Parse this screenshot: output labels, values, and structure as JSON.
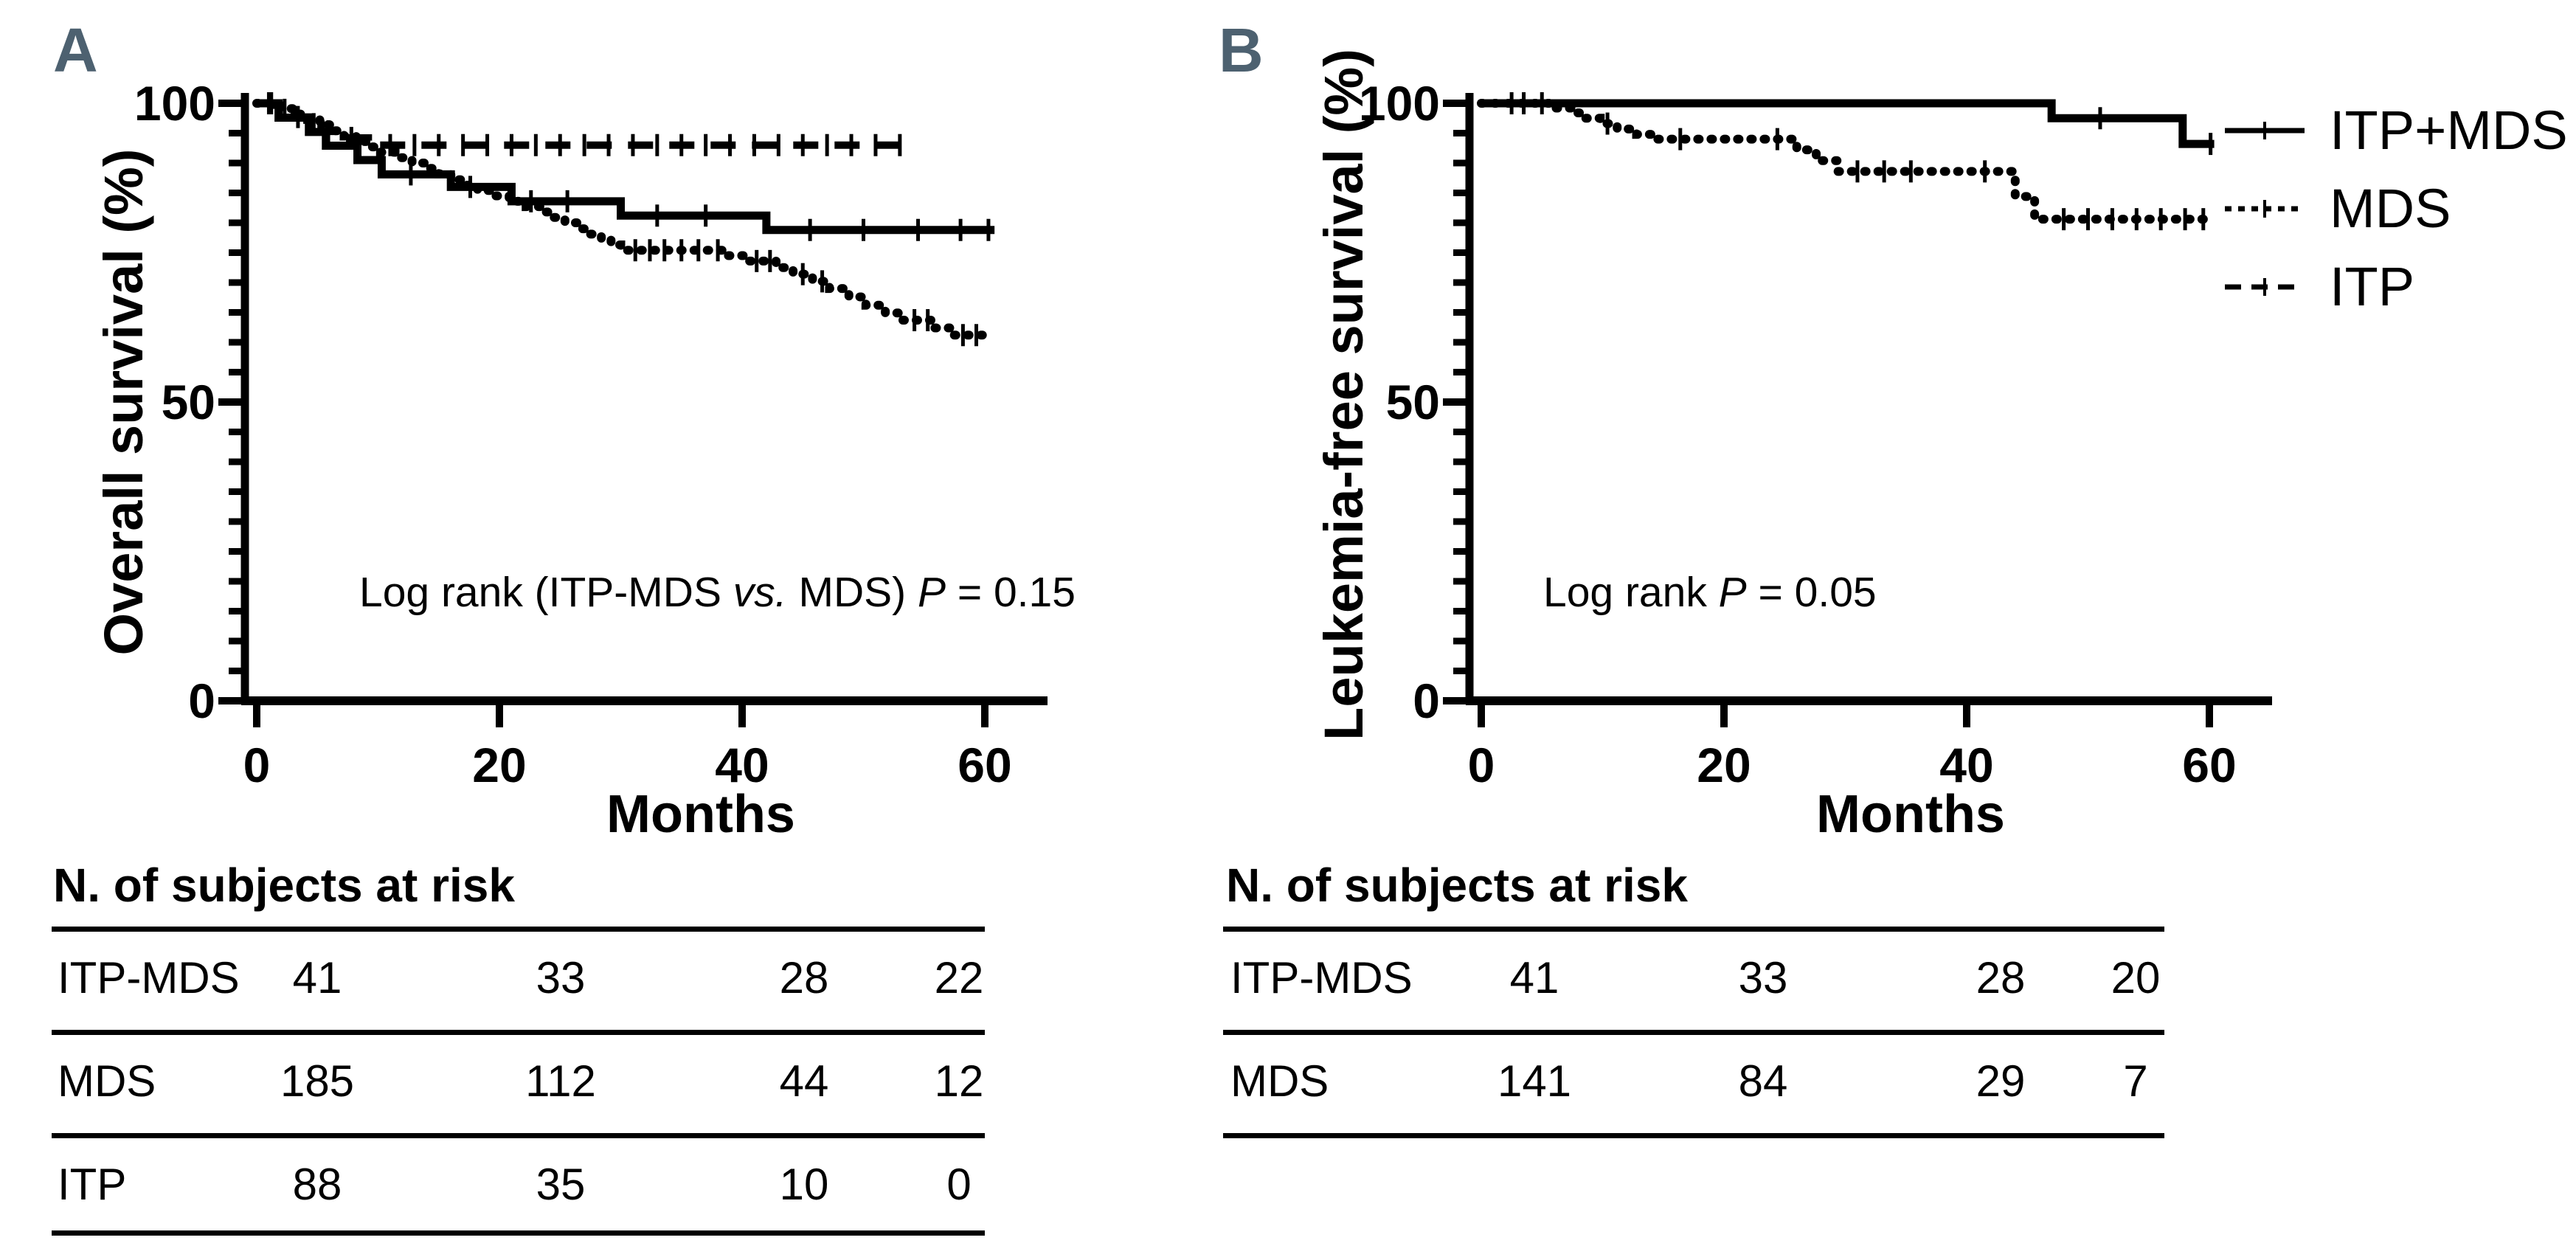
{
  "figure": {
    "background": "#ffffff",
    "panel_label_color": "#4d6170",
    "line_color": "#000000"
  },
  "panels": [
    {
      "label": "A",
      "y_title": "Overall survival (%)",
      "x_title": "Months",
      "annotation_parts": [
        {
          "text": "Log rank (ITP-MDS ",
          "italic": false
        },
        {
          "text": "vs.",
          "italic": true
        },
        {
          "text": " MDS) ",
          "italic": false
        },
        {
          "text": "P",
          "italic": true
        },
        {
          "text": " = 0.15",
          "italic": false
        }
      ],
      "risk_table": {
        "title": "N. of subjects at risk",
        "rows": [
          {
            "label": "ITP-MDS",
            "values": [
              "41",
              "33",
              "28",
              "22"
            ]
          },
          {
            "label": "MDS",
            "values": [
              "185",
              "112",
              "44",
              "12"
            ]
          },
          {
            "label": "ITP",
            "values": [
              "88",
              "35",
              "10",
              "0"
            ]
          }
        ]
      }
    },
    {
      "label": "B",
      "y_title": "Leukemia-free survival (%)",
      "x_title": "Months",
      "annotation_parts": [
        {
          "text": "Log rank ",
          "italic": false
        },
        {
          "text": "P",
          "italic": true
        },
        {
          "text": " = 0.05",
          "italic": false
        }
      ],
      "risk_table": {
        "title": "N. of subjects at risk",
        "rows": [
          {
            "label": "ITP-MDS",
            "values": [
              "41",
              "33",
              "28",
              "20"
            ]
          },
          {
            "label": "MDS",
            "values": [
              "141",
              "84",
              "29",
              "7"
            ]
          }
        ]
      }
    }
  ],
  "legend": {
    "items": [
      {
        "label": "ITP+MDS",
        "style": "solid"
      },
      {
        "label": "MDS",
        "style": "dotted"
      },
      {
        "label": "ITP",
        "style": "dashed"
      }
    ]
  },
  "chart_data": [
    {
      "type": "line",
      "subtype": "kaplan-meier-step",
      "title": "A",
      "xlabel": "Months",
      "ylabel": "Overall survival (%)",
      "xlim": [
        0,
        65
      ],
      "ylim": [
        0,
        100
      ],
      "x_ticks": [
        0,
        20,
        40,
        60
      ],
      "y_ticks": [
        0,
        50,
        100
      ],
      "y_minor_tick_interval": 5,
      "annotation": "Log rank (ITP-MDS vs. MDS) P = 0.15",
      "series": [
        {
          "name": "ITP+MDS",
          "style": "solid",
          "points": [
            [
              0,
              100
            ],
            [
              1.8,
              97.6
            ],
            [
              4.3,
              95.2
            ],
            [
              5.7,
              92.9
            ],
            [
              8.3,
              90.5
            ],
            [
              10.3,
              88.1
            ],
            [
              16,
              86
            ],
            [
              21,
              83.6
            ],
            [
              30,
              81.2
            ],
            [
              42,
              78.8
            ]
          ],
          "end_x": 60.8,
          "censor_x": [
            1.0,
            12.7,
            17.6,
            22.6,
            25.6,
            33,
            37,
            45.6,
            50,
            54.5,
            58,
            60.3
          ]
        },
        {
          "name": "MDS",
          "style": "dotted",
          "points": [
            [
              0,
              100
            ],
            [
              2,
              99.1
            ],
            [
              3.2,
              98.2
            ],
            [
              4.2,
              97.3
            ],
            [
              5.2,
              96.4
            ],
            [
              6.2,
              95.4
            ],
            [
              7.2,
              94.5
            ],
            [
              8.2,
              93.6
            ],
            [
              9.2,
              92.7
            ],
            [
              10.2,
              91.8
            ],
            [
              11.4,
              90.9
            ],
            [
              12.8,
              90
            ],
            [
              14,
              89.1
            ],
            [
              15,
              88.2
            ],
            [
              16,
              87.2
            ],
            [
              17,
              86.3
            ],
            [
              18.2,
              85.4
            ],
            [
              19.4,
              84.5
            ],
            [
              20.8,
              83.6
            ],
            [
              22.2,
              82.7
            ],
            [
              23.4,
              81.8
            ],
            [
              24.4,
              80.9
            ],
            [
              25.4,
              80
            ],
            [
              26.4,
              79
            ],
            [
              27.4,
              78.1
            ],
            [
              28.4,
              77.2
            ],
            [
              29.2,
              76.3
            ],
            [
              30,
              75.4
            ],
            [
              38.8,
              74.5
            ],
            [
              40.2,
              73.6
            ],
            [
              42.8,
              72.5
            ],
            [
              44.2,
              71.4
            ],
            [
              45.8,
              70.2
            ],
            [
              47.2,
              69
            ],
            [
              48.8,
              67.6
            ],
            [
              50.2,
              66.2
            ],
            [
              51.8,
              64.9
            ],
            [
              53.2,
              63.7
            ],
            [
              55.8,
              62.4
            ],
            [
              57.2,
              61.2
            ]
          ],
          "end_x": 59.8,
          "censor_x": [
            31.2,
            32.4,
            33.6,
            35,
            36.4,
            38,
            41.2,
            42.3,
            45,
            46.6,
            54.2,
            55.3,
            58.2,
            59.3
          ]
        },
        {
          "name": "ITP",
          "style": "dashed",
          "points": [
            [
              0,
              100
            ],
            [
              1.6,
              98.9
            ],
            [
              3.1,
              97.7
            ],
            [
              4.3,
              96.5
            ],
            [
              5.3,
              95.3
            ],
            [
              6.6,
              94.2
            ],
            [
              9.2,
              93
            ]
          ],
          "end_x": 53.8,
          "censor_x": [
            1.2,
            2.3,
            3.4,
            4.7,
            5.9,
            7.8,
            11,
            13,
            15,
            17,
            19,
            21,
            23,
            25,
            27,
            29,
            31,
            33,
            35,
            37,
            39,
            41,
            43,
            45,
            47,
            49,
            51,
            53
          ]
        }
      ]
    },
    {
      "type": "line",
      "subtype": "kaplan-meier-step",
      "title": "B",
      "xlabel": "Months",
      "ylabel": "Leukemia-free survival (%)",
      "xlim": [
        0,
        65
      ],
      "ylim": [
        0,
        100
      ],
      "x_ticks": [
        0,
        20,
        40,
        60
      ],
      "y_ticks": [
        0,
        50,
        100
      ],
      "y_minor_tick_interval": 5,
      "annotation": "Log rank P = 0.05",
      "series": [
        {
          "name": "ITP+MDS",
          "style": "solid",
          "points": [
            [
              0,
              100
            ],
            [
              47,
              97.5
            ],
            [
              57.8,
              93.2
            ]
          ],
          "end_x": 60.4,
          "censor_x": [
            2.5,
            51,
            60.1
          ]
        },
        {
          "name": "MDS",
          "style": "dotted",
          "points": [
            [
              0,
              100
            ],
            [
              6,
              99.2
            ],
            [
              7.4,
              98.4
            ],
            [
              8.6,
              97.5
            ],
            [
              9.8,
              96.6
            ],
            [
              11.2,
              95.7
            ],
            [
              12.8,
              94.8
            ],
            [
              14.4,
              94
            ],
            [
              26,
              92.2
            ],
            [
              27.6,
              90.4
            ],
            [
              29.4,
              88.6
            ],
            [
              44,
              84.4
            ],
            [
              45.6,
              80.6
            ]
          ],
          "end_x": 60.2,
          "censor_x": [
            3.5,
            5,
            10.4,
            16.4,
            24.4,
            31,
            33.2,
            35.4,
            41.5,
            48,
            50,
            52,
            54,
            56,
            58,
            59.5
          ]
        }
      ]
    }
  ]
}
